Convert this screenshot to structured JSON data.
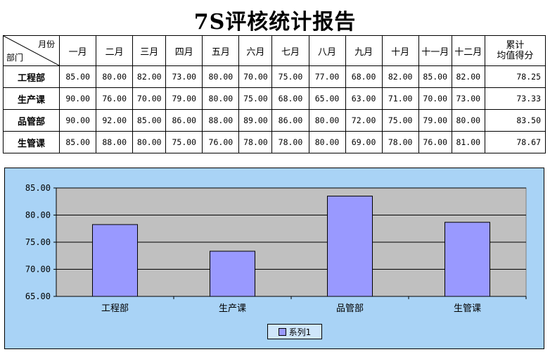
{
  "title": "7S评核统计报告",
  "table": {
    "corner_top": "月份",
    "corner_bottom": "部门",
    "months": [
      "一月",
      "二月",
      "三月",
      "四月",
      "五月",
      "六月",
      "七月",
      "八月",
      "九月",
      "十月",
      "十一月",
      "十二月"
    ],
    "cum_header": [
      "累计",
      "均值得分"
    ],
    "rows": [
      {
        "dept": "工程部",
        "values": [
          "85.00",
          "80.00",
          "82.00",
          "73.00",
          "80.00",
          "70.00",
          "75.00",
          "77.00",
          "68.00",
          "82.00",
          "85.00",
          "82.00"
        ],
        "avg": "78.25"
      },
      {
        "dept": "生产课",
        "values": [
          "90.00",
          "76.00",
          "70.00",
          "79.00",
          "80.00",
          "75.00",
          "68.00",
          "65.00",
          "63.00",
          "71.00",
          "70.00",
          "73.00"
        ],
        "avg": "73.33"
      },
      {
        "dept": "品管部",
        "values": [
          "90.00",
          "92.00",
          "85.00",
          "86.00",
          "88.00",
          "89.00",
          "86.00",
          "80.00",
          "72.00",
          "75.00",
          "79.00",
          "80.00"
        ],
        "avg": "83.50"
      },
      {
        "dept": "生管课",
        "values": [
          "85.00",
          "88.00",
          "80.00",
          "75.00",
          "76.00",
          "78.00",
          "78.00",
          "80.00",
          "69.00",
          "78.00",
          "76.00",
          "81.00"
        ],
        "avg": "78.67"
      }
    ]
  },
  "chart_data": {
    "type": "bar",
    "categories": [
      "工程部",
      "生产课",
      "品管部",
      "生管课"
    ],
    "series": [
      {
        "name": "系列1",
        "values": [
          78.25,
          73.33,
          83.5,
          78.67
        ]
      }
    ],
    "ylim": [
      65,
      85
    ],
    "yticks": [
      "65.00",
      "70.00",
      "75.00",
      "80.00",
      "85.00"
    ],
    "grid": true,
    "legend": "bottom",
    "colors": {
      "bar": "#9999ff",
      "plot_bg": "#c0c0c0",
      "chart_bg": "#a9d3f6"
    }
  }
}
